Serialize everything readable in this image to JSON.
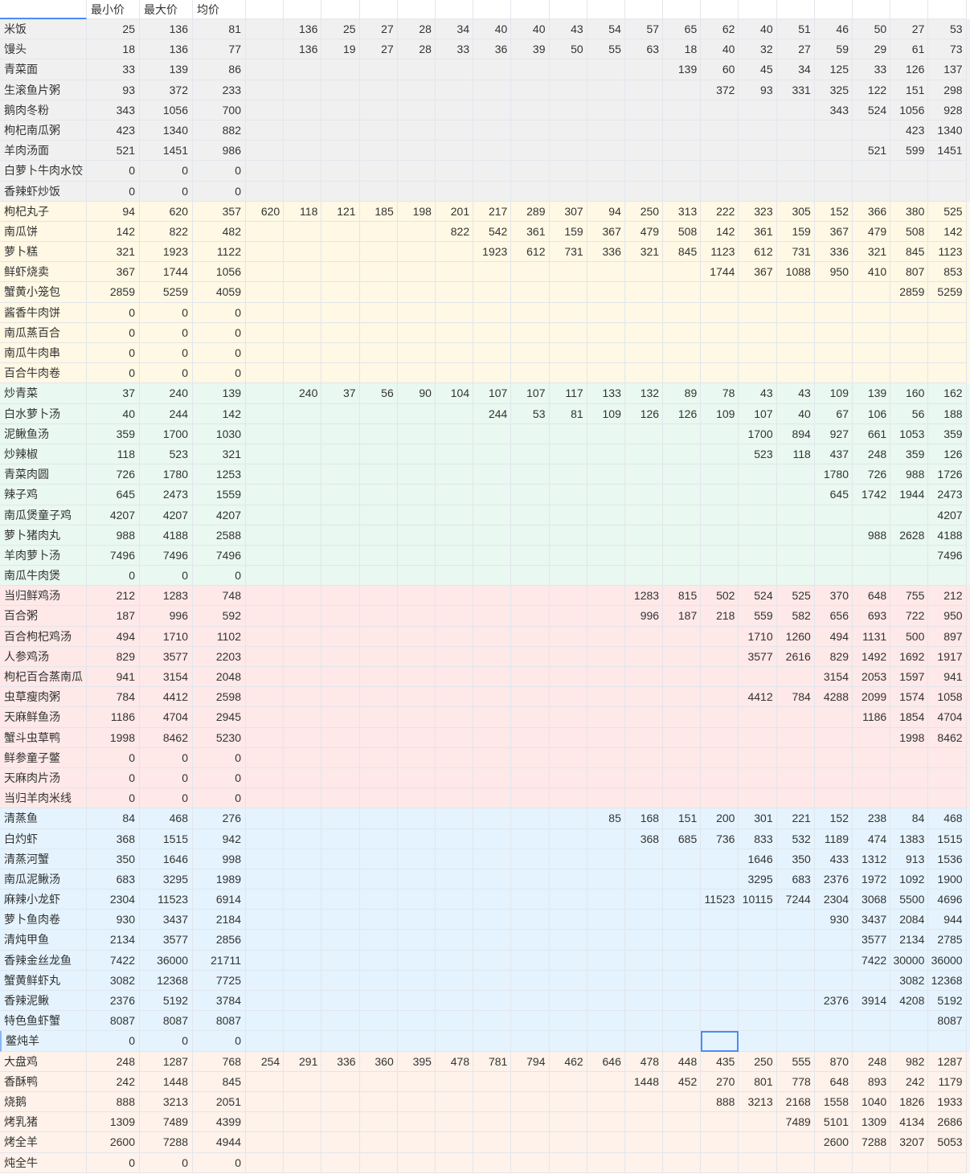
{
  "header": {
    "corner": "",
    "col_min": "最小价",
    "col_max": "最大价",
    "col_avg": "均价"
  },
  "groups": [
    {
      "color": "#f0f0f0",
      "rows": [
        {
          "name": "米饭",
          "min": "25",
          "max": "136",
          "avg": "81",
          "values": [
            "136",
            "25",
            "27",
            "28",
            "34",
            "40",
            "40",
            "43",
            "54",
            "57",
            "65",
            "62",
            "40",
            "51",
            "46",
            "50",
            "27",
            "53"
          ]
        },
        {
          "name": "馒头",
          "min": "18",
          "max": "136",
          "avg": "77",
          "values": [
            "136",
            "19",
            "27",
            "28",
            "33",
            "36",
            "39",
            "50",
            "55",
            "63",
            "18",
            "40",
            "32",
            "27",
            "59",
            "29",
            "61",
            "73"
          ]
        },
        {
          "name": "青菜面",
          "min": "33",
          "max": "139",
          "avg": "86",
          "values": [
            "139",
            "60",
            "45",
            "34",
            "125",
            "33",
            "126",
            "137"
          ]
        },
        {
          "name": "生滚鱼片粥",
          "min": "93",
          "max": "372",
          "avg": "233",
          "values": [
            "372",
            "93",
            "331",
            "325",
            "122",
            "151",
            "298"
          ]
        },
        {
          "name": "鹅肉冬粉",
          "min": "343",
          "max": "1056",
          "avg": "700",
          "values": [
            "343",
            "524",
            "1056",
            "928"
          ]
        },
        {
          "name": "枸杞南瓜粥",
          "min": "423",
          "max": "1340",
          "avg": "882",
          "values": [
            "423",
            "1340"
          ]
        },
        {
          "name": "羊肉汤面",
          "min": "521",
          "max": "1451",
          "avg": "986",
          "values": [
            "521",
            "599",
            "1451"
          ]
        },
        {
          "name": "白萝卜牛肉水饺",
          "min": "0",
          "max": "0",
          "avg": "0",
          "values": []
        },
        {
          "name": "香辣虾炒饭",
          "min": "0",
          "max": "0",
          "avg": "0",
          "values": []
        }
      ]
    },
    {
      "color": "#fef8e4",
      "rows": [
        {
          "name": "枸杞丸子",
          "min": "94",
          "max": "620",
          "avg": "357",
          "values": [
            "620",
            "118",
            "121",
            "185",
            "198",
            "201",
            "217",
            "289",
            "307",
            "94",
            "250",
            "313",
            "222",
            "323",
            "305",
            "152",
            "366",
            "380",
            "525"
          ]
        },
        {
          "name": "南瓜饼",
          "min": "142",
          "max": "822",
          "avg": "482",
          "values": [
            "822",
            "542",
            "361",
            "159",
            "367",
            "479",
            "508",
            "142",
            "361",
            "159",
            "367",
            "479",
            "508",
            "142"
          ]
        },
        {
          "name": "萝卜糕",
          "min": "321",
          "max": "1923",
          "avg": "1122",
          "values": [
            "1923",
            "612",
            "731",
            "336",
            "321",
            "845",
            "1123",
            "612",
            "731",
            "336",
            "321",
            "845",
            "1123"
          ]
        },
        {
          "name": "鲜虾烧卖",
          "min": "367",
          "max": "1744",
          "avg": "1056",
          "values": [
            "1744",
            "367",
            "1088",
            "950",
            "410",
            "807",
            "853"
          ]
        },
        {
          "name": "蟹黄小笼包",
          "min": "2859",
          "max": "5259",
          "avg": "4059",
          "values": [
            "2859",
            "5259"
          ]
        },
        {
          "name": "酱香牛肉饼",
          "min": "0",
          "max": "0",
          "avg": "0",
          "values": []
        },
        {
          "name": "南瓜蒸百合",
          "min": "0",
          "max": "0",
          "avg": "0",
          "values": []
        },
        {
          "name": "南瓜牛肉串",
          "min": "0",
          "max": "0",
          "avg": "0",
          "values": []
        },
        {
          "name": "百合牛肉卷",
          "min": "0",
          "max": "0",
          "avg": "0",
          "values": []
        }
      ]
    },
    {
      "color": "#e9f8f0",
      "rows": [
        {
          "name": "炒青菜",
          "min": "37",
          "max": "240",
          "avg": "139",
          "values": [
            "240",
            "37",
            "56",
            "90",
            "104",
            "107",
            "107",
            "117",
            "133",
            "132",
            "89",
            "78",
            "43",
            "43",
            "109",
            "139",
            "160",
            "162"
          ]
        },
        {
          "name": "白水萝卜汤",
          "min": "40",
          "max": "244",
          "avg": "142",
          "values": [
            "244",
            "53",
            "81",
            "109",
            "126",
            "126",
            "109",
            "107",
            "40",
            "67",
            "106",
            "56",
            "188"
          ]
        },
        {
          "name": "泥鳅鱼汤",
          "min": "359",
          "max": "1700",
          "avg": "1030",
          "values": [
            "1700",
            "894",
            "927",
            "661",
            "1053",
            "359"
          ]
        },
        {
          "name": "炒辣椒",
          "min": "118",
          "max": "523",
          "avg": "321",
          "values": [
            "523",
            "118",
            "437",
            "248",
            "359",
            "126"
          ]
        },
        {
          "name": "青菜肉圆",
          "min": "726",
          "max": "1780",
          "avg": "1253",
          "values": [
            "1780",
            "726",
            "988",
            "1726"
          ]
        },
        {
          "name": "辣子鸡",
          "min": "645",
          "max": "2473",
          "avg": "1559",
          "values": [
            "645",
            "1742",
            "1944",
            "2473"
          ]
        },
        {
          "name": "南瓜煲童子鸡",
          "min": "4207",
          "max": "4207",
          "avg": "4207",
          "values": [
            "4207"
          ]
        },
        {
          "name": "萝卜猪肉丸",
          "min": "988",
          "max": "4188",
          "avg": "2588",
          "values": [
            "988",
            "2628",
            "4188"
          ]
        },
        {
          "name": "羊肉萝卜汤",
          "min": "7496",
          "max": "7496",
          "avg": "7496",
          "values": [
            "7496"
          ]
        },
        {
          "name": "南瓜牛肉煲",
          "min": "0",
          "max": "0",
          "avg": "0",
          "values": []
        }
      ]
    },
    {
      "color": "#fee8e8",
      "rows": [
        {
          "name": "当归鲜鸡汤",
          "min": "212",
          "max": "1283",
          "avg": "748",
          "values": [
            "1283",
            "815",
            "502",
            "524",
            "525",
            "370",
            "648",
            "755",
            "212"
          ]
        },
        {
          "name": "百合粥",
          "min": "187",
          "max": "996",
          "avg": "592",
          "values": [
            "996",
            "187",
            "218",
            "559",
            "582",
            "656",
            "693",
            "722",
            "950"
          ]
        },
        {
          "name": "百合枸杞鸡汤",
          "min": "494",
          "max": "1710",
          "avg": "1102",
          "values": [
            "1710",
            "1260",
            "494",
            "1131",
            "500",
            "897"
          ]
        },
        {
          "name": "人参鸡汤",
          "min": "829",
          "max": "3577",
          "avg": "2203",
          "values": [
            "3577",
            "2616",
            "829",
            "1492",
            "1692",
            "1917"
          ]
        },
        {
          "name": "枸杞百合蒸南瓜",
          "min": "941",
          "max": "3154",
          "avg": "2048",
          "values": [
            "3154",
            "2053",
            "1597",
            "941"
          ]
        },
        {
          "name": "虫草瘦肉粥",
          "min": "784",
          "max": "4412",
          "avg": "2598",
          "values": [
            "4412",
            "784",
            "4288",
            "2099",
            "1574",
            "1058"
          ]
        },
        {
          "name": "天麻鲜鱼汤",
          "min": "1186",
          "max": "4704",
          "avg": "2945",
          "values": [
            "1186",
            "1854",
            "4704"
          ]
        },
        {
          "name": "蟹斗虫草鸭",
          "min": "1998",
          "max": "8462",
          "avg": "5230",
          "values": [
            "1998",
            "8462"
          ]
        },
        {
          "name": "鲜参童子鳖",
          "min": "0",
          "max": "0",
          "avg": "0",
          "values": []
        },
        {
          "name": "天麻肉片汤",
          "min": "0",
          "max": "0",
          "avg": "0",
          "values": []
        },
        {
          "name": "当归羊肉米线",
          "min": "0",
          "max": "0",
          "avg": "0",
          "values": []
        }
      ]
    },
    {
      "color": "#e4f3fd",
      "rows": [
        {
          "name": "清蒸鱼",
          "min": "84",
          "max": "468",
          "avg": "276",
          "values": [
            "85",
            "168",
            "151",
            "200",
            "301",
            "221",
            "152",
            "238",
            "84",
            "468"
          ]
        },
        {
          "name": "白灼虾",
          "min": "368",
          "max": "1515",
          "avg": "942",
          "values": [
            "368",
            "685",
            "736",
            "833",
            "532",
            "1189",
            "474",
            "1383",
            "1515"
          ]
        },
        {
          "name": "清蒸河蟹",
          "min": "350",
          "max": "1646",
          "avg": "998",
          "values": [
            "1646",
            "350",
            "433",
            "1312",
            "913",
            "1536"
          ]
        },
        {
          "name": "南瓜泥鳅汤",
          "min": "683",
          "max": "3295",
          "avg": "1989",
          "values": [
            "3295",
            "683",
            "2376",
            "1972",
            "1092",
            "1900"
          ]
        },
        {
          "name": "麻辣小龙虾",
          "min": "2304",
          "max": "11523",
          "avg": "6914",
          "values": [
            "11523",
            "10115",
            "7244",
            "2304",
            "3068",
            "5500",
            "4696"
          ]
        },
        {
          "name": "萝卜鱼肉卷",
          "min": "930",
          "max": "3437",
          "avg": "2184",
          "values": [
            "930",
            "3437",
            "2084",
            "944"
          ]
        },
        {
          "name": "清炖甲鱼",
          "min": "2134",
          "max": "3577",
          "avg": "2856",
          "values": [
            "3577",
            "2134",
            "2785"
          ]
        },
        {
          "name": "香辣金丝龙鱼",
          "min": "7422",
          "max": "36000",
          "avg": "21711",
          "values": [
            "7422",
            "30000",
            "36000"
          ]
        },
        {
          "name": "蟹黄鲜虾丸",
          "min": "3082",
          "max": "12368",
          "avg": "7725",
          "values": [
            "3082",
            "12368"
          ]
        },
        {
          "name": "香辣泥鳅",
          "min": "2376",
          "max": "5192",
          "avg": "3784",
          "values": [
            "2376",
            "3914",
            "4208",
            "5192"
          ]
        },
        {
          "name": "特色鱼虾蟹",
          "min": "8087",
          "max": "8087",
          "avg": "8087",
          "values": [
            "8087"
          ]
        },
        {
          "name": "鳖炖羊",
          "min": "0",
          "max": "0",
          "avg": "0",
          "values": []
        }
      ]
    },
    {
      "color": "#fef2ea",
      "rows": [
        {
          "name": "大盘鸡",
          "min": "248",
          "max": "1287",
          "avg": "768",
          "values": [
            "254",
            "291",
            "336",
            "360",
            "395",
            "478",
            "781",
            "794",
            "462",
            "646",
            "478",
            "448",
            "435",
            "250",
            "555",
            "870",
            "248",
            "982",
            "1287"
          ]
        },
        {
          "name": "香酥鸭",
          "min": "242",
          "max": "1448",
          "avg": "845",
          "values": [
            "1448",
            "452",
            "270",
            "801",
            "778",
            "648",
            "893",
            "242",
            "1179"
          ]
        },
        {
          "name": "烧鹅",
          "min": "888",
          "max": "3213",
          "avg": "2051",
          "values": [
            "888",
            "3213",
            "2168",
            "1558",
            "1040",
            "1826",
            "1933"
          ]
        },
        {
          "name": "烤乳猪",
          "min": "1309",
          "max": "7489",
          "avg": "4399",
          "values": [
            "7489",
            "5101",
            "1309",
            "4134",
            "2686"
          ]
        },
        {
          "name": "烤全羊",
          "min": "2600",
          "max": "7288",
          "avg": "4944",
          "values": [
            "2600",
            "7288",
            "3207",
            "5053"
          ]
        },
        {
          "name": "炖全牛",
          "min": "0",
          "max": "0",
          "avg": "0",
          "values": []
        }
      ]
    }
  ],
  "selection_color": "#4a8cf7"
}
